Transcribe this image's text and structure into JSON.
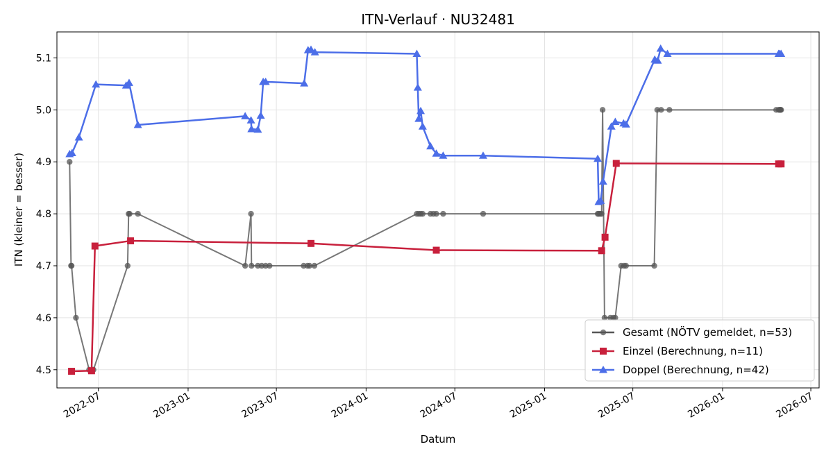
{
  "chart_data": {
    "type": "line",
    "title": "ITN-Verlauf · NU32481",
    "xlabel": "Datum",
    "ylabel": "ITN  (kleiner = besser)",
    "xlim": [
      "2022-04-07",
      "2026-07-18"
    ],
    "ylim": [
      4.465,
      5.15
    ],
    "x_ticks": [
      "2022-07",
      "2023-01",
      "2023-07",
      "2024-01",
      "2024-07",
      "2025-01",
      "2025-07",
      "2026-01",
      "2026-07"
    ],
    "y_ticks": [
      "4.5",
      "4.6",
      "4.7",
      "4.8",
      "4.9",
      "5.0",
      "5.1"
    ],
    "grid": true,
    "legend_position": "bottom-right",
    "series": [
      {
        "name": "Gesamt (NÖTV gemeldet, n=53)",
        "color": "#555555",
        "marker": "circle",
        "x": [
          "2022-05-03",
          "2022-05-06",
          "2022-05-07",
          "2022-05-16",
          "2022-06-12",
          "2022-06-19",
          "2022-06-21",
          "2022-08-30",
          "2022-09-01",
          "2022-09-03",
          "2022-09-20",
          "2023-04-28",
          "2023-05-10",
          "2023-05-11",
          "2023-05-24",
          "2023-06-01",
          "2023-06-09",
          "2023-06-17",
          "2023-08-26",
          "2023-09-03",
          "2023-09-07",
          "2023-09-17",
          "2024-04-14",
          "2024-04-18",
          "2024-04-22",
          "2024-04-26",
          "2024-05-12",
          "2024-05-18",
          "2024-05-24",
          "2024-06-07",
          "2024-08-28",
          "2025-04-20",
          "2025-04-22",
          "2025-04-25",
          "2025-04-28",
          "2025-04-30",
          "2025-05-04",
          "2025-05-16",
          "2025-05-22",
          "2025-05-26",
          "2025-06-07",
          "2025-06-13",
          "2025-06-17",
          "2025-08-14",
          "2025-08-20",
          "2025-08-28",
          "2025-09-14",
          "2026-04-21",
          "2026-04-26",
          "2026-04-28",
          "2026-04-29",
          "2026-04-30",
          "2026-05-01"
        ],
        "values": [
          4.9,
          4.7,
          4.7,
          4.6,
          4.5,
          4.5,
          4.5,
          4.7,
          4.8,
          4.8,
          4.8,
          4.7,
          4.8,
          4.7,
          4.7,
          4.7,
          4.7,
          4.7,
          4.7,
          4.7,
          4.7,
          4.7,
          4.8,
          4.8,
          4.8,
          4.8,
          4.8,
          4.8,
          4.8,
          4.8,
          4.8,
          4.8,
          4.8,
          4.8,
          4.8,
          5.0,
          4.6,
          4.6,
          4.6,
          4.6,
          4.7,
          4.7,
          4.7,
          4.7,
          5.0,
          5.0,
          5.0,
          5.0,
          5.0,
          5.0,
          5.0,
          5.0,
          5.0
        ]
      },
      {
        "name": "Einzel (Berechnung, n=11)",
        "color": "#c8203c",
        "marker": "square",
        "x": [
          "2022-05-07",
          "2022-06-17",
          "2022-06-24",
          "2022-09-05",
          "2023-09-10",
          "2024-05-24",
          "2025-04-28",
          "2025-05-05",
          "2025-05-28",
          "2026-04-26",
          "2026-05-01"
        ],
        "values": [
          4.497,
          4.498,
          4.738,
          4.748,
          4.743,
          4.73,
          4.729,
          4.755,
          4.897,
          4.896,
          4.896
        ]
      },
      {
        "name": "Doppel (Berechnung, n=42)",
        "color": "#4c6ee8",
        "marker": "triangle",
        "x": [
          "2022-05-03",
          "2022-05-08",
          "2022-05-22",
          "2022-06-26",
          "2022-08-27",
          "2022-09-02",
          "2022-09-20",
          "2023-04-28",
          "2023-05-10",
          "2023-05-11",
          "2023-05-24",
          "2023-05-30",
          "2023-06-04",
          "2023-06-09",
          "2023-08-27",
          "2023-09-04",
          "2023-09-10",
          "2023-09-18",
          "2024-04-14",
          "2024-04-16",
          "2024-04-18",
          "2024-04-22",
          "2024-04-26",
          "2024-05-12",
          "2024-05-24",
          "2024-06-07",
          "2024-08-28",
          "2025-04-20",
          "2025-04-22",
          "2025-04-26",
          "2025-05-01",
          "2025-05-18",
          "2025-05-26",
          "2025-06-12",
          "2025-06-17",
          "2025-08-15",
          "2025-08-21",
          "2025-08-27",
          "2025-09-10",
          "2026-04-26",
          "2026-04-28",
          "2026-05-01"
        ],
        "values": [
          4.915,
          4.917,
          4.947,
          5.049,
          5.047,
          5.052,
          4.971,
          4.988,
          4.98,
          4.963,
          4.962,
          4.989,
          5.054,
          5.054,
          5.051,
          5.115,
          5.116,
          5.111,
          5.108,
          5.043,
          4.983,
          4.998,
          4.968,
          4.93,
          4.916,
          4.912,
          4.912,
          4.906,
          4.823,
          4.825,
          4.862,
          4.968,
          4.977,
          4.974,
          4.972,
          5.097,
          5.095,
          5.118,
          5.108,
          5.108,
          5.108,
          5.108
        ]
      }
    ]
  }
}
